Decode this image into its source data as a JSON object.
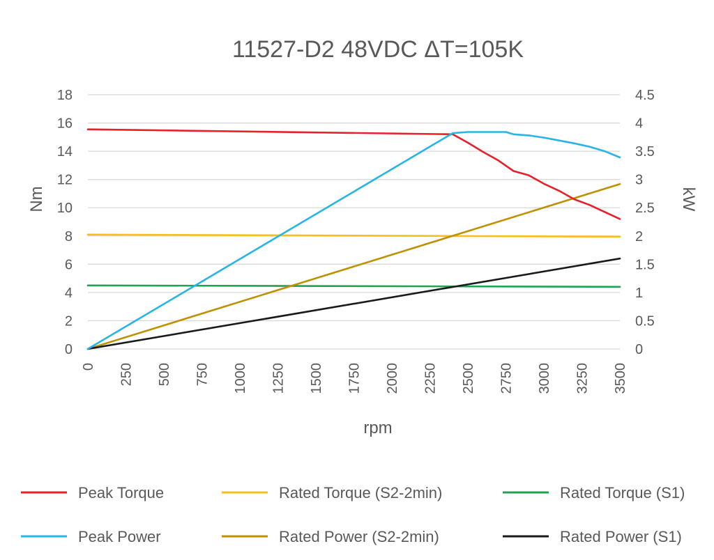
{
  "chart_data": {
    "type": "line",
    "title": "11527-D2 48VDC ΔT=105K",
    "xlabel": "rpm",
    "ylabel_left": "Nm",
    "ylabel_right": "kW",
    "xlim": [
      0,
      3500
    ],
    "ylim_left": [
      0,
      18
    ],
    "ylim_right": [
      0,
      4.5
    ],
    "x_ticks": [
      "0",
      "250",
      "500",
      "750",
      "1000",
      "1250",
      "1500",
      "1750",
      "2000",
      "2250",
      "2500",
      "2750",
      "3000",
      "3250",
      "3500"
    ],
    "y_left_ticks": [
      "0",
      "2",
      "4",
      "6",
      "8",
      "10",
      "12",
      "14",
      "16",
      "18"
    ],
    "y_right_ticks": [
      "0",
      "0.5",
      "1",
      "1.5",
      "2",
      "2.5",
      "3",
      "3.5",
      "4",
      "4.5"
    ],
    "grid": "horizontal",
    "legend_position": "bottom",
    "series": [
      {
        "name": "Peak Torque",
        "axis": "left",
        "color": "#e8202a",
        "x": [
          0,
          2400,
          2500,
          2600,
          2700,
          2800,
          2900,
          3000,
          3100,
          3200,
          3300,
          3400,
          3500
        ],
        "y": [
          15.55,
          15.2,
          14.6,
          13.95,
          13.35,
          12.6,
          12.3,
          11.7,
          11.2,
          10.6,
          10.2,
          9.7,
          9.2
        ]
      },
      {
        "name": "Rated Torque (S2-2min)",
        "axis": "left",
        "color": "#f5bf1e",
        "x": [
          0,
          3500
        ],
        "y": [
          8.1,
          7.95
        ]
      },
      {
        "name": "Rated Torque (S1)",
        "axis": "left",
        "color": "#1fa352",
        "x": [
          0,
          3500
        ],
        "y": [
          4.5,
          4.4
        ]
      },
      {
        "name": "Peak Power",
        "axis": "right",
        "color": "#27b4e6",
        "x": [
          0,
          2400,
          2500,
          2600,
          2700,
          2750,
          2800,
          2900,
          3000,
          3100,
          3200,
          3300,
          3400,
          3500
        ],
        "y": [
          0,
          3.82,
          3.84,
          3.84,
          3.84,
          3.84,
          3.8,
          3.78,
          3.74,
          3.69,
          3.64,
          3.58,
          3.5,
          3.39
        ]
      },
      {
        "name": "Rated Power (S2-2min)",
        "axis": "right",
        "color": "#bf9000",
        "x": [
          0,
          3500
        ],
        "y": [
          0,
          2.92
        ]
      },
      {
        "name": "Rated Power (S1)",
        "axis": "right",
        "color": "#1a1a1a",
        "x": [
          0,
          3500
        ],
        "y": [
          0,
          1.6
        ]
      }
    ]
  }
}
